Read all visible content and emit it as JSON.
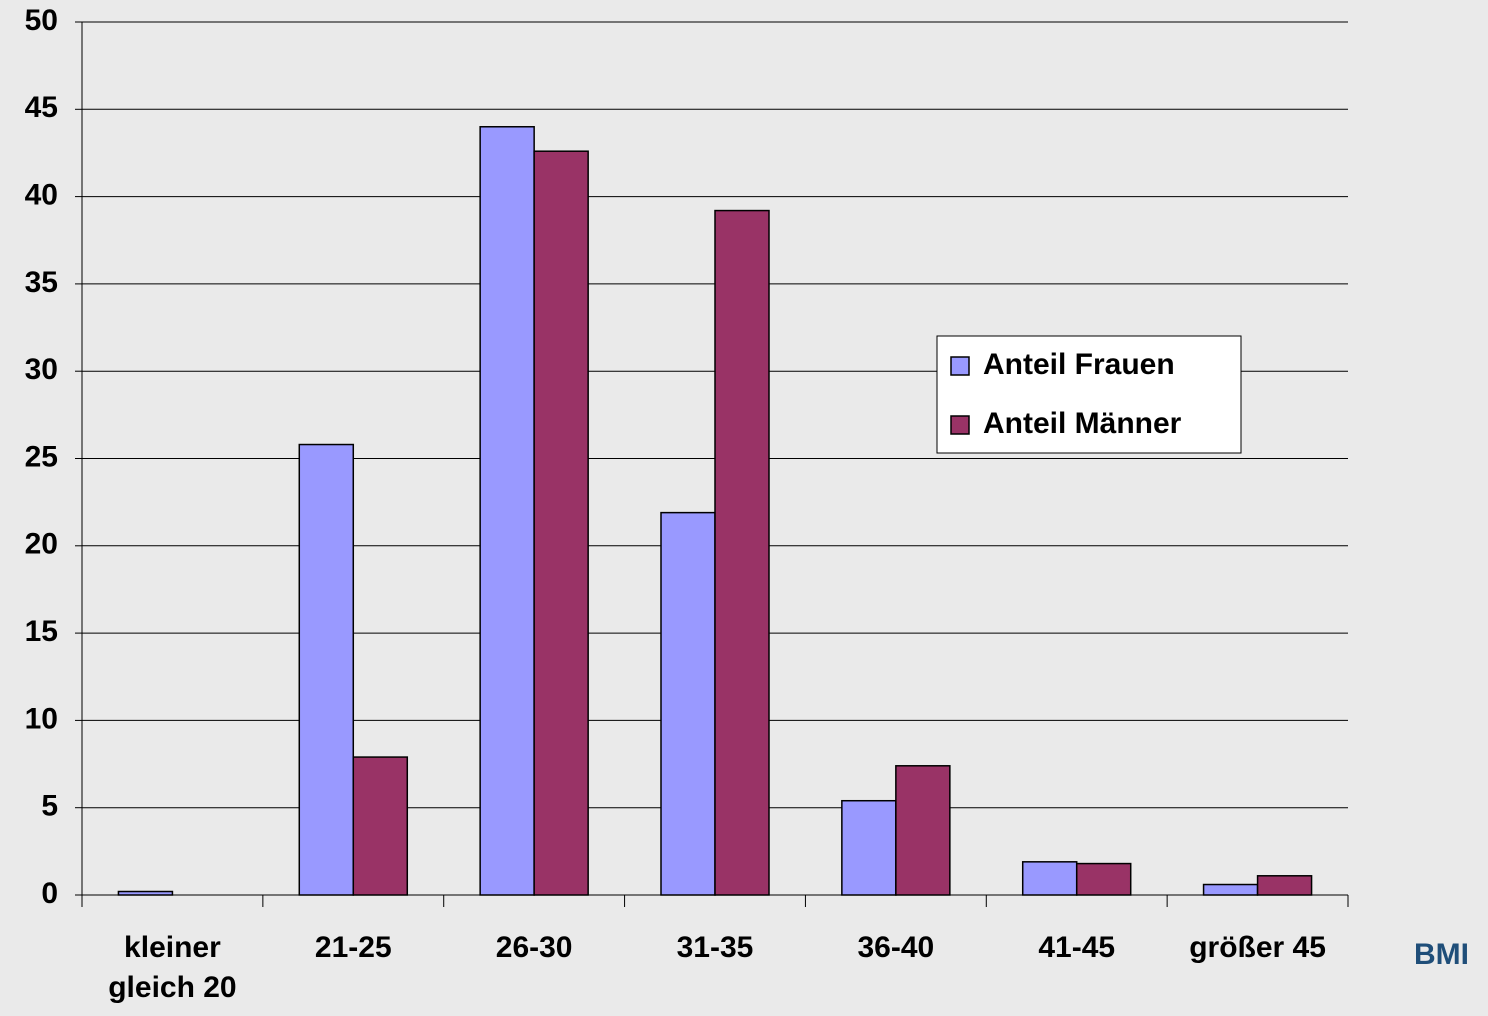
{
  "chart_data": {
    "type": "bar",
    "x_label": "BMI",
    "categories": [
      "kleiner gleich 20",
      "21-25",
      "26-30",
      "31-35",
      "36-40",
      "41-45",
      "größer 45"
    ],
    "series": [
      {
        "name": "Anteil Frauen",
        "color": "#9999ff",
        "values": [
          0.2,
          25.8,
          44.0,
          21.9,
          5.4,
          1.9,
          0.6
        ]
      },
      {
        "name": "Anteil Männer",
        "color": "#993366",
        "values": [
          0,
          7.9,
          42.6,
          39.2,
          7.4,
          1.8,
          1.1
        ]
      }
    ],
    "ylim": [
      0,
      50
    ],
    "yticks": [
      0,
      5,
      10,
      15,
      20,
      25,
      30,
      35,
      40,
      45,
      50
    ],
    "grid": true,
    "legend_position": "right"
  }
}
